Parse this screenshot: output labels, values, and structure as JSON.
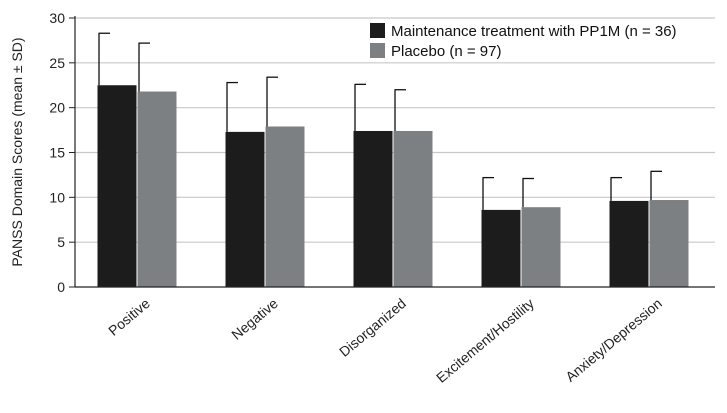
{
  "chart_data": {
    "type": "bar",
    "title": "",
    "xlabel": "",
    "ylabel": "PANSS Domain Scores (mean ± SD)",
    "ylim": [
      0,
      30
    ],
    "yticks": [
      0,
      5,
      10,
      15,
      20,
      25,
      30
    ],
    "grid": true,
    "legend_position": "top-right",
    "error_bars": "SD",
    "categories": [
      "Positive",
      "Negative",
      "Disorganized",
      "Excitement/Hostility",
      "Anxiety/Depression"
    ],
    "series": [
      {
        "name": "Maintenance treatment with PP1M (n = 36)",
        "color": "#1c1c1c",
        "values": [
          22.5,
          17.3,
          17.4,
          8.6,
          9.6
        ],
        "sd": [
          5.8,
          5.5,
          5.2,
          3.6,
          2.6
        ]
      },
      {
        "name": "Placebo (n = 97)",
        "color": "#7d8083",
        "values": [
          21.8,
          17.9,
          17.4,
          8.9,
          9.7
        ],
        "sd": [
          5.4,
          5.5,
          4.6,
          3.2,
          3.2
        ]
      }
    ]
  }
}
